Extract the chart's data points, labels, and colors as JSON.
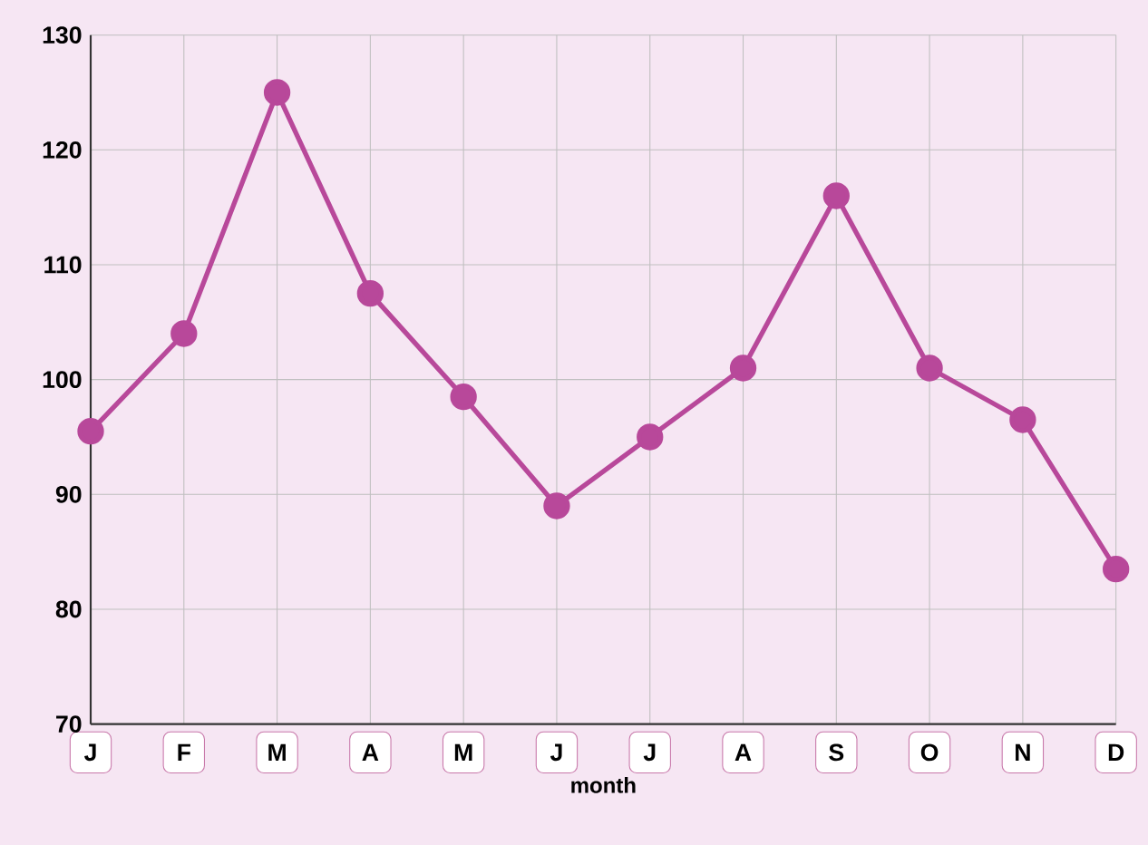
{
  "chart_data": {
    "type": "line",
    "xlabel": "month",
    "categories": [
      "J",
      "F",
      "M",
      "A",
      "M",
      "J",
      "J",
      "A",
      "S",
      "O",
      "N",
      "D"
    ],
    "series": [
      {
        "color": "#b8489a",
        "values": [
          95.5,
          104,
          125,
          107.5,
          98.5,
          89,
          95,
          101,
          116,
          101,
          96.5,
          83.5
        ]
      }
    ],
    "ylim": [
      70,
      130
    ],
    "yticks": [
      70,
      80,
      90,
      100,
      110,
      120,
      130
    ],
    "grid": true,
    "marker": "circle",
    "line_style": "solid"
  }
}
